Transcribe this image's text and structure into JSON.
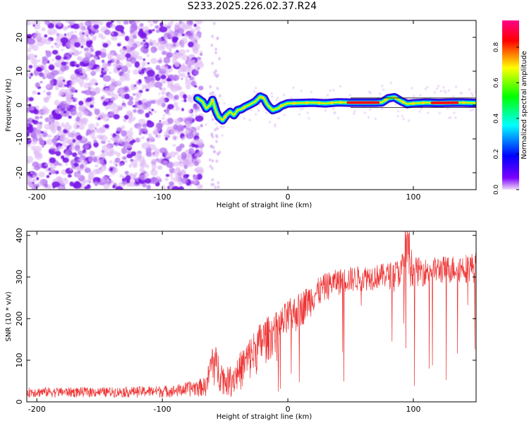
{
  "figure": {
    "title": "S233.2025.226.02.37.R24"
  },
  "chart_data": [
    {
      "type": "heatmap",
      "title": "S233.2025.226.02.37.R24",
      "xlabel": "Height of straight line (km)",
      "ylabel": "Frequency (Hz)",
      "xlim": [
        -208,
        150
      ],
      "ylim": [
        -25,
        25
      ],
      "xticks": [
        -200,
        -100,
        0,
        100
      ],
      "yticks": [
        -20,
        -10,
        0,
        10,
        20
      ],
      "colorbar": {
        "label": "Normalized spectral amplitude",
        "range": [
          0.0,
          0.95
        ],
        "ticks": [
          0.0,
          0.2,
          0.4,
          0.6,
          0.8
        ],
        "colormap": [
          "#f2dcf7",
          "#7a00ff",
          "#0000ff",
          "#00ffff",
          "#00ff00",
          "#ffff00",
          "#ff0000",
          "#ff0088"
        ]
      },
      "noise_region_x": [
        -208,
        -72
      ],
      "signal_start_x": -72,
      "tone_track": {
        "x": [
          -72,
          -68,
          -65,
          -62,
          -60,
          -57,
          -55,
          -52,
          -49,
          -46,
          -43,
          -40,
          -37,
          -34,
          -30,
          -26,
          -22,
          -19,
          -17,
          -15,
          -12,
          -8,
          -5,
          0,
          10,
          20,
          30,
          40,
          50,
          60,
          70,
          75,
          80,
          85,
          90,
          95,
          100,
          110,
          120,
          130,
          140,
          150
        ],
        "y": [
          2.0,
          1.0,
          -1.0,
          0.0,
          1.5,
          -2.0,
          -3.5,
          -4.5,
          -3.0,
          -2.0,
          -3.0,
          -1.5,
          -1.2,
          -0.5,
          0.2,
          1.0,
          2.5,
          2.0,
          0.5,
          -0.5,
          -1.5,
          -1.0,
          -0.2,
          0.5,
          0.6,
          0.7,
          0.5,
          0.8,
          0.7,
          0.7,
          0.7,
          0.8,
          2.0,
          2.3,
          1.2,
          0.3,
          0.5,
          0.7,
          0.6,
          0.7,
          0.7,
          0.6
        ]
      },
      "high_amplitude_segments": [
        [
          48,
          72
        ],
        [
          115,
          135
        ]
      ]
    },
    {
      "type": "line",
      "xlabel": "Height of straight line (km)",
      "ylabel": "SNR (10 * v/v)",
      "xlim": [
        -208,
        150
      ],
      "ylim": [
        0,
        410
      ],
      "xticks": [
        -200,
        -100,
        0,
        100
      ],
      "yticks": [
        0,
        100,
        200,
        300,
        400
      ],
      "series": [
        {
          "name": "SNR",
          "color": "#ee3333",
          "envelope_x": [
            -208,
            -140,
            -90,
            -65,
            -60,
            -55,
            -50,
            -45,
            -40,
            -30,
            -20,
            -10,
            0,
            10,
            20,
            30,
            40,
            50,
            60,
            70,
            80,
            90,
            95,
            100,
            110,
            120,
            130,
            140,
            150
          ],
          "envelope_low": [
            10,
            10,
            10,
            12,
            35,
            25,
            15,
            10,
            20,
            45,
            80,
            115,
            145,
            175,
            210,
            240,
            255,
            260,
            265,
            268,
            270,
            272,
            275,
            275,
            278,
            280,
            282,
            285,
            285
          ],
          "envelope_high": [
            35,
            35,
            40,
            60,
            150,
            120,
            80,
            90,
            110,
            160,
            200,
            215,
            245,
            265,
            290,
            310,
            320,
            325,
            328,
            330,
            335,
            345,
            415,
            350,
            345,
            350,
            352,
            355,
            360
          ]
        }
      ]
    }
  ]
}
